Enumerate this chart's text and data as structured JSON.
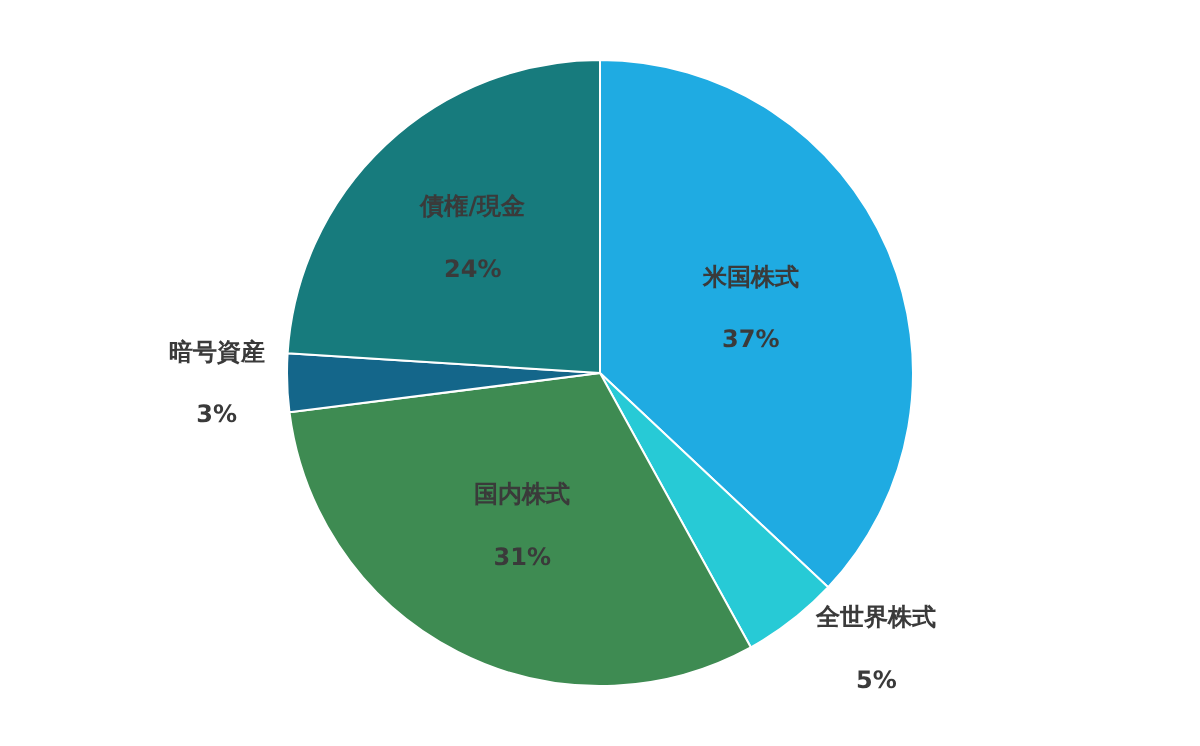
{
  "chart_data": {
    "type": "pie",
    "categories": [
      "米国株式",
      "全世界株式",
      "国内株式",
      "暗号資産",
      "債権/現金"
    ],
    "values": [
      37,
      5,
      31,
      3,
      24
    ],
    "value_labels": [
      "37%",
      "5%",
      "31%",
      "3%",
      "24%"
    ],
    "colors": [
      "#1fabe2",
      "#27cad6",
      "#3e8b52",
      "#14668a",
      "#177b7d"
    ],
    "legend": false
  }
}
